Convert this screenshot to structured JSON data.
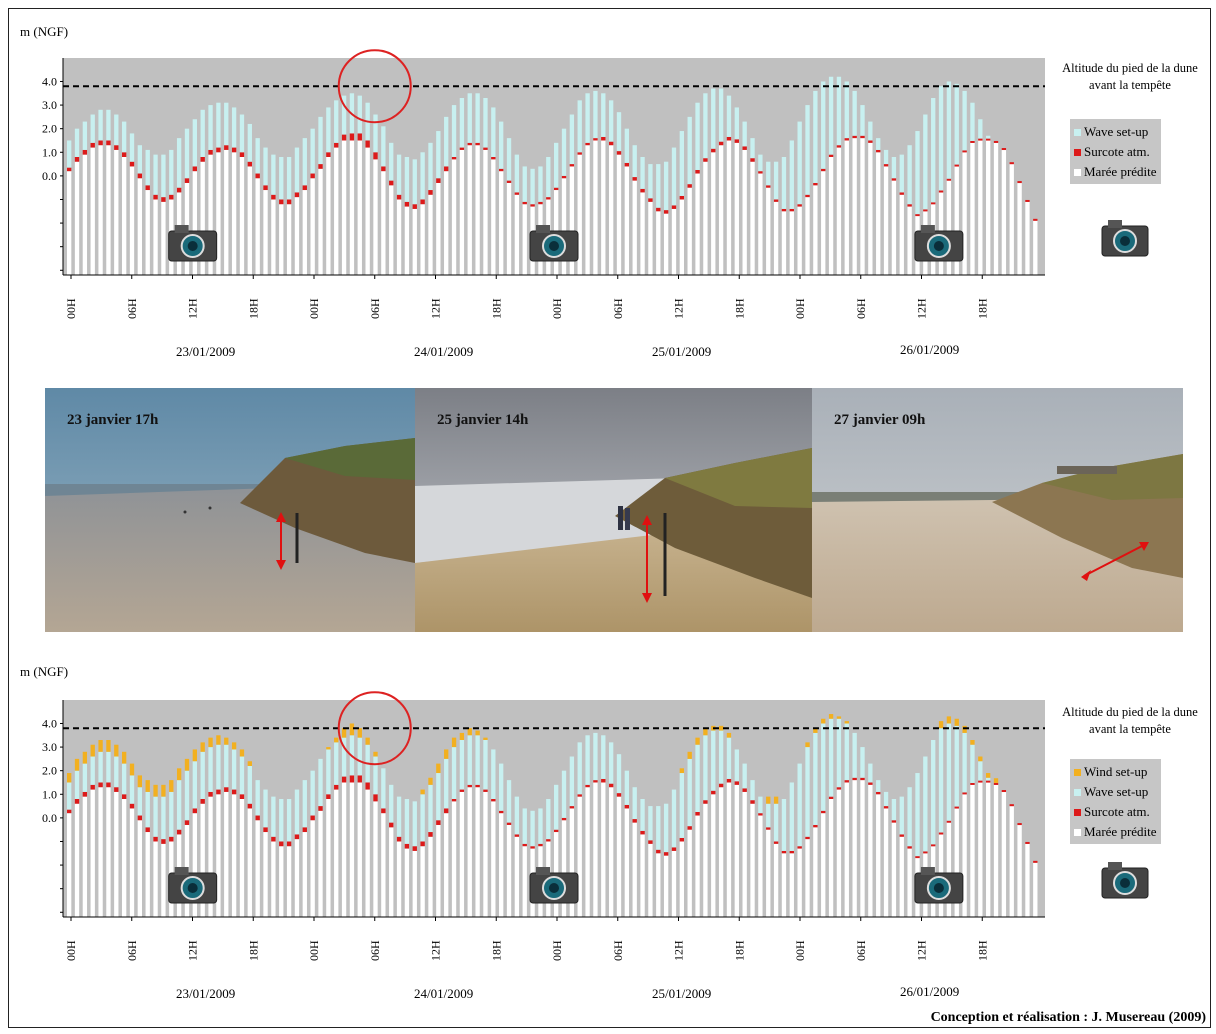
{
  "charts": [
    {
      "y_unit": "m (NGF)",
      "dune_label": "Altitude du pied de la dune avant la tempête",
      "legend": [
        {
          "label": "Wave set-up",
          "color": "#c8f0f0"
        },
        {
          "label": "Surcote atm.",
          "color": "#dd1a1a"
        },
        {
          "label": "Marée prédite",
          "color": "#ffffff"
        }
      ]
    },
    {
      "y_unit": "m (NGF)",
      "dune_label": "Altitude du pied de la dune avant la tempête",
      "legend": [
        {
          "label": "Wind set-up",
          "color": "#f2b020"
        },
        {
          "label": "Wave set-up",
          "color": "#c8f0f0"
        },
        {
          "label": "Surcote atm.",
          "color": "#dd1a1a"
        },
        {
          "label": "Marée prédite",
          "color": "#ffffff"
        }
      ]
    }
  ],
  "dates": [
    "23/01/2009",
    "24/01/2009",
    "25/01/2009",
    "26/01/2009"
  ],
  "photos": [
    {
      "title": "23 janvier 17h"
    },
    {
      "title": "25 janvier 14h"
    },
    {
      "title": "27 janvier 09h"
    }
  ],
  "credit": "Conception et réalisation : J. Musereau (2009)",
  "chart_data": [
    {
      "type": "bar",
      "stacked": true,
      "ylabel": "m (NGF)",
      "y_ticks": [
        "4.0",
        "3.0",
        "2.0",
        "1.0",
        "0.0"
      ],
      "x_tick_labels": [
        "00H",
        "06H",
        "12H",
        "18H",
        "00H",
        "06H",
        "12H",
        "18H",
        "00H",
        "06H",
        "12H",
        "18H",
        "00H",
        "06H",
        "12H",
        "18H"
      ],
      "dune_foot_altitude": 3.8,
      "annotation": "red circle around 06H on 24/01/2009",
      "camera_markers_hours": [
        16,
        62,
        111
      ],
      "bars_per_hour": 1.5,
      "series_meaning": {
        "tide_top": "Marée prédite",
        "surge": "Surcote atm.",
        "wave_top": "Wave set-up"
      },
      "tide_top": [
        0.2,
        0.6,
        0.9,
        1.2,
        1.3,
        1.3,
        1.1,
        0.8,
        0.4,
        -0.1,
        -0.6,
        -1.0,
        -1.1,
        -1.0,
        -0.7,
        -0.3,
        0.2,
        0.6,
        0.9,
        1.0,
        1.1,
        1.0,
        0.8,
        0.4,
        -0.1,
        -0.6,
        -1.0,
        -1.2,
        -1.2,
        -0.9,
        -0.6,
        -0.1,
        0.3,
        0.8,
        1.2,
        1.5,
        1.5,
        1.5,
        1.2,
        0.7,
        0.2,
        -0.4,
        -1.0,
        -1.3,
        -1.4,
        -1.2,
        -0.8,
        -0.3,
        0.2,
        0.7,
        1.1,
        1.3,
        1.3,
        1.1,
        0.7,
        0.2,
        -0.3,
        -0.8,
        -1.2,
        -1.3,
        -1.2,
        -1.0,
        -0.6,
        -0.1,
        0.4,
        0.9,
        1.3,
        1.5,
        1.5,
        1.3,
        0.9,
        0.4,
        -0.2,
        -0.7,
        -1.1,
        -1.5,
        -1.6,
        -1.4,
        -1.0,
        -0.5,
        0.1,
        0.6,
        1.0,
        1.3,
        1.5,
        1.4,
        1.1,
        0.6,
        0.1,
        -0.5,
        -1.1,
        -1.5,
        -1.5,
        -1.3,
        -0.9,
        -0.4,
        0.2,
        0.8,
        1.2,
        1.5,
        1.6,
        1.6,
        1.4,
        1.0,
        0.4,
        -0.2,
        -0.8,
        -1.3,
        -1.7,
        -1.5,
        -1.2,
        -0.7,
        -0.2,
        0.4,
        1.0,
        1.4,
        1.5,
        1.5,
        1.4,
        1.1,
        0.5,
        -0.3,
        -1.1,
        -1.9
      ],
      "surge": [
        0.15,
        0.2,
        0.2,
        0.2,
        0.2,
        0.2,
        0.2,
        0.2,
        0.2,
        0.2,
        0.2,
        0.2,
        0.2,
        0.2,
        0.2,
        0.2,
        0.2,
        0.2,
        0.2,
        0.2,
        0.2,
        0.2,
        0.2,
        0.2,
        0.2,
        0.2,
        0.2,
        0.2,
        0.2,
        0.2,
        0.2,
        0.2,
        0.2,
        0.2,
        0.2,
        0.25,
        0.3,
        0.3,
        0.3,
        0.3,
        0.2,
        0.2,
        0.2,
        0.2,
        0.2,
        0.2,
        0.2,
        0.2,
        0.2,
        0.1,
        0.1,
        0.1,
        0.1,
        0.1,
        0.1,
        0.1,
        0.1,
        0.1,
        0.1,
        0.1,
        0.1,
        0.1,
        0.1,
        0.1,
        0.1,
        0.1,
        0.1,
        0.1,
        0.15,
        0.15,
        0.15,
        0.15,
        0.15,
        0.15,
        0.15,
        0.15,
        0.15,
        0.15,
        0.15,
        0.15,
        0.15,
        0.15,
        0.15,
        0.15,
        0.15,
        0.15,
        0.15,
        0.15,
        0.1,
        0.1,
        0.1,
        0.1,
        0.1,
        0.1,
        0.1,
        0.1,
        0.1,
        0.1,
        0.1,
        0.1,
        0.1,
        0.1,
        0.1,
        0.1,
        0.1,
        0.1,
        0.1,
        0.1,
        0.08,
        0.08,
        0.08,
        0.08,
        0.08,
        0.08,
        0.08,
        0.08,
        0.08,
        0.08,
        0.08,
        0.08,
        0.08,
        0.08,
        0.08,
        0.08
      ],
      "wave_top": [
        1.5,
        2.0,
        2.3,
        2.6,
        2.8,
        2.8,
        2.6,
        2.3,
        1.8,
        1.3,
        1.1,
        0.9,
        0.9,
        1.1,
        1.6,
        2.0,
        2.4,
        2.8,
        3.0,
        3.1,
        3.1,
        2.9,
        2.6,
        2.2,
        1.6,
        1.2,
        0.9,
        0.8,
        0.8,
        1.2,
        1.6,
        2.0,
        2.5,
        2.9,
        3.2,
        3.4,
        3.5,
        3.4,
        3.1,
        2.6,
        2.1,
        1.4,
        0.9,
        0.8,
        0.7,
        1.0,
        1.4,
        1.9,
        2.5,
        3.0,
        3.3,
        3.5,
        3.5,
        3.3,
        2.9,
        2.3,
        1.6,
        0.9,
        0.4,
        0.3,
        0.4,
        0.8,
        1.4,
        2.0,
        2.6,
        3.2,
        3.5,
        3.6,
        3.5,
        3.2,
        2.7,
        2.0,
        1.3,
        0.8,
        0.5,
        0.5,
        0.6,
        1.2,
        1.9,
        2.5,
        3.1,
        3.5,
        3.7,
        3.7,
        3.4,
        2.9,
        2.3,
        1.6,
        0.9,
        0.6,
        0.6,
        0.8,
        1.5,
        2.3,
        3.0,
        3.6,
        4.0,
        4.2,
        4.2,
        4.0,
        3.6,
        3.0,
        2.3,
        1.6,
        1.1,
        0.8,
        0.9,
        1.3,
        1.9,
        2.6,
        3.3,
        3.8,
        4.0,
        3.9,
        3.6,
        3.1,
        2.4,
        1.7,
        1.0,
        0.6
      ]
    },
    {
      "type": "bar",
      "stacked": true,
      "ylabel": "m (NGF)",
      "y_ticks": [
        "4.0",
        "3.0",
        "2.0",
        "1.0",
        "0.0"
      ],
      "x_tick_labels": [
        "00H",
        "06H",
        "12H",
        "18H",
        "00H",
        "06H",
        "12H",
        "18H",
        "00H",
        "06H",
        "12H",
        "18H",
        "00H",
        "06H",
        "12H",
        "18H"
      ],
      "dune_foot_altitude": 3.8,
      "annotation": "red circle around 06H on 24/01/2009",
      "camera_markers_hours": [
        16,
        62,
        111
      ],
      "series_meaning": {
        "tide_top": "Marée prédite",
        "surge": "Surcote atm.",
        "wave_top": "Wave set-up",
        "wind_add": "Wind set-up"
      },
      "wind_add": [
        0.4,
        0.5,
        0.5,
        0.5,
        0.5,
        0.5,
        0.5,
        0.5,
        0.5,
        0.5,
        0.5,
        0.5,
        0.5,
        0.5,
        0.5,
        0.5,
        0.5,
        0.4,
        0.4,
        0.4,
        0.3,
        0.3,
        0.3,
        0.2,
        0.0,
        0.0,
        0.0,
        0.0,
        0.0,
        0.0,
        0.0,
        0.0,
        0.0,
        0.1,
        0.2,
        0.4,
        0.5,
        0.4,
        0.3,
        0.2,
        0.0,
        0.0,
        0.0,
        0.0,
        0.0,
        0.2,
        0.3,
        0.4,
        0.4,
        0.4,
        0.3,
        0.3,
        0.2,
        0.1,
        0.0,
        0.0,
        0.0,
        0.0,
        0.0,
        0.0,
        0.0,
        0.0,
        0.0,
        0.0,
        0.0,
        0.0,
        0.0,
        0.0,
        0.0,
        0.0,
        0.0,
        0.0,
        0.0,
        0.0,
        0.0,
        0.0,
        0.0,
        0.0,
        0.2,
        0.3,
        0.3,
        0.3,
        0.2,
        0.2,
        0.2,
        0.0,
        0.0,
        0.0,
        0.0,
        0.3,
        0.3,
        0.0,
        0.0,
        0.0,
        0.2,
        0.2,
        0.2,
        0.2,
        0.1,
        0.1,
        0.0,
        0.0,
        0.0,
        0.0,
        0.0,
        0.0,
        0.0,
        0.0,
        0.0,
        0.0,
        0.0,
        0.3,
        0.3,
        0.3,
        0.3,
        0.2,
        0.2,
        0.2,
        0.2,
        0.0
      ]
    }
  ]
}
